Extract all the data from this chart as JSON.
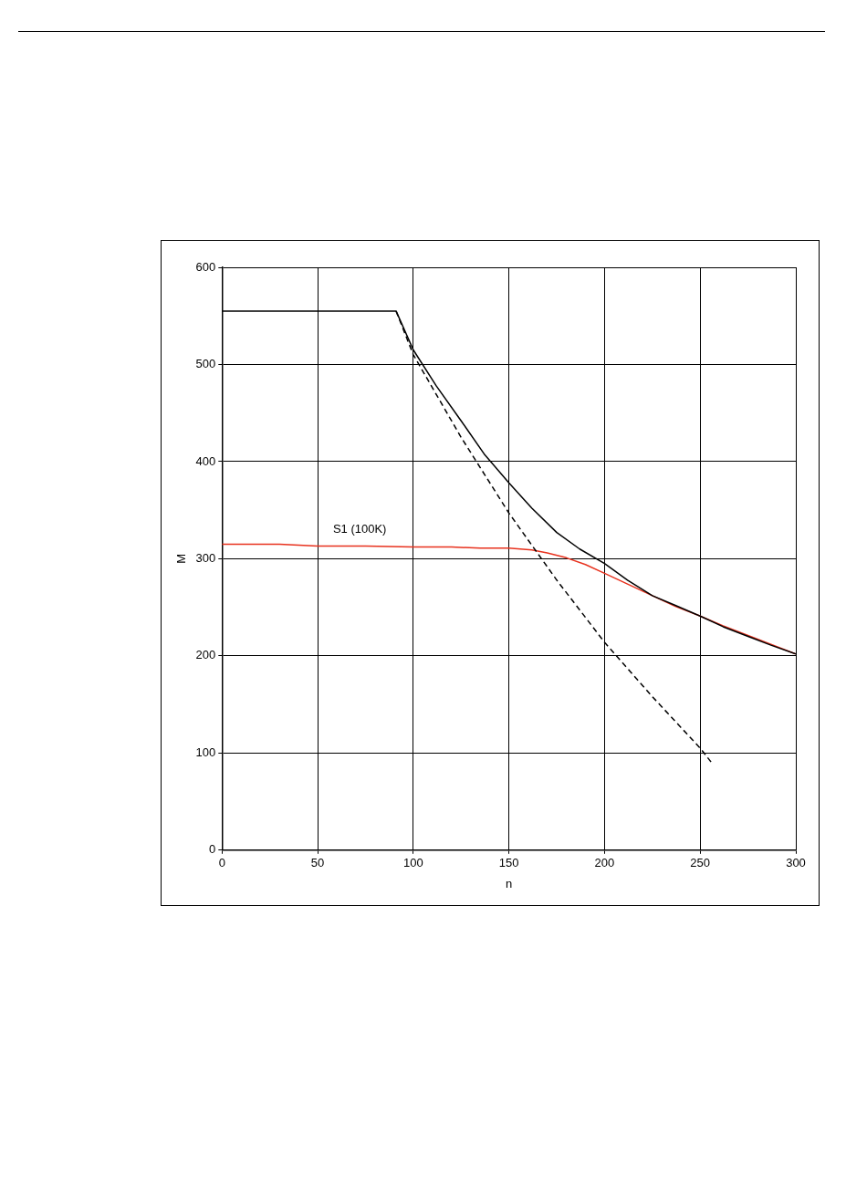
{
  "chart_data": {
    "type": "line",
    "xlabel": "n",
    "ylabel": "M",
    "xlim": [
      0,
      300
    ],
    "xticks": [
      0,
      50,
      100,
      150,
      200,
      250,
      300
    ],
    "ylim": [
      0,
      600
    ],
    "yticks": [
      0,
      100,
      200,
      300,
      400,
      500,
      600
    ],
    "grid": true,
    "legend": false,
    "marker": "none",
    "annotations": [
      "S1 (100K)"
    ],
    "series": [
      {
        "color": "#000000",
        "line_style": "solid",
        "x": [
          0,
          91,
          100,
          112,
          125,
          137,
          150,
          162,
          175,
          187,
          200,
          212,
          225,
          237,
          250,
          262,
          275,
          287,
          300
        ],
        "values": [
          555,
          555,
          515,
          478,
          442,
          408,
          378,
          352,
          327,
          310,
          295,
          278,
          262,
          252,
          241,
          230,
          220,
          211,
          202
        ]
      },
      {
        "color": "#000000",
        "line_style": "dashed",
        "x": [
          91,
          100,
          125,
          150,
          175,
          200,
          225,
          250,
          256
        ],
        "values": [
          555,
          510,
          425,
          347,
          278,
          214,
          158,
          105,
          90
        ]
      },
      {
        "color": "#e8321e",
        "line_style": "solid",
        "x": [
          0,
          30,
          50,
          75,
          100,
          120,
          135,
          150,
          162,
          170,
          180,
          190,
          200,
          212,
          225,
          237,
          250,
          262,
          275,
          287,
          300
        ],
        "values": [
          315,
          315,
          313,
          313,
          312,
          312,
          311,
          311,
          309,
          306,
          301,
          294,
          285,
          274,
          262,
          251,
          241,
          231,
          221,
          212,
          202
        ]
      }
    ]
  }
}
